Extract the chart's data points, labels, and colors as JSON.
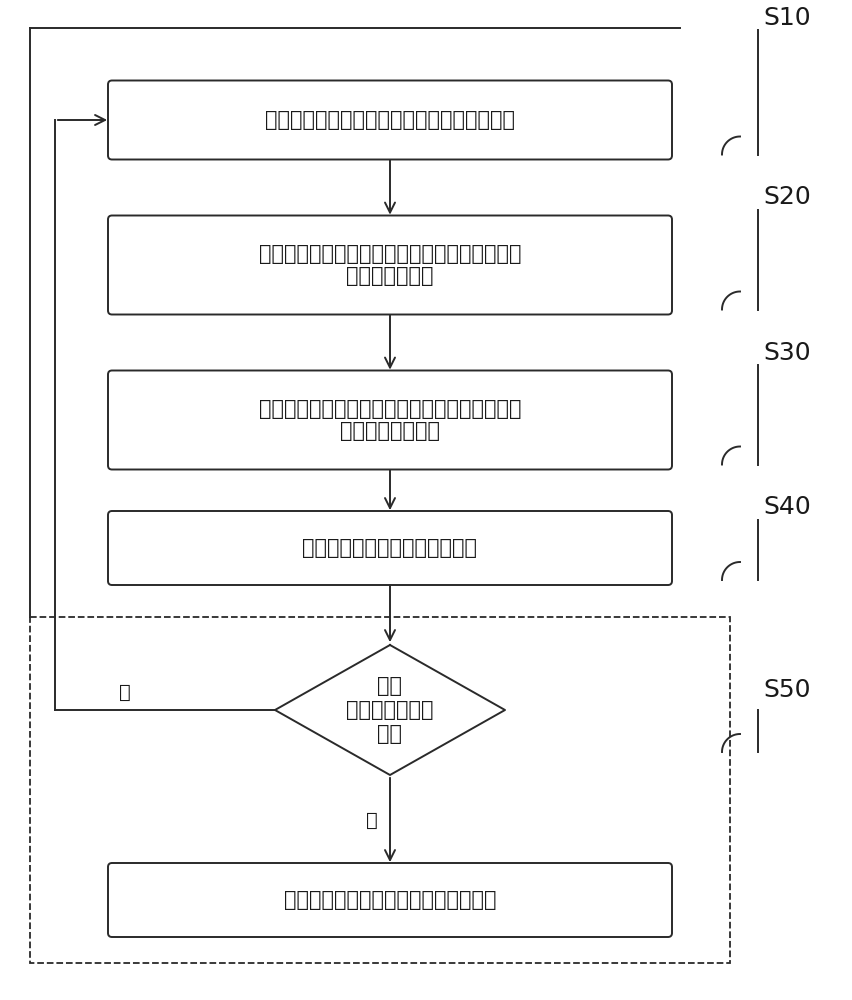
{
  "bg_color": "#ffffff",
  "box_edge_color": "#2a2a2a",
  "arrow_color": "#2a2a2a",
  "text_color": "#1a1a1a",
  "box1_text": "调取区外故障发生时测量回路的多源录波文件",
  "box2_line1": "对多源录波文件的录波波形进行异步多源数据的",
  "box2_line2": "关联及时间同步",
  "box3_line1": "根据预设的规则库判别录波波形数据，以确定测",
  "box3_line2": "量回路的异常类型",
  "box4_text": "根据所确定的异常类型进行报警",
  "diamond_line1": "是否",
  "diamond_line2": "出现新的异常类",
  "diamond_line3": "型？",
  "box5_text": "补充新的判定规则至规则库中进行完善",
  "yes_label": "是",
  "no_label": "否",
  "step_labels": [
    "S10",
    "S20",
    "S30",
    "S40",
    "S50"
  ],
  "font_size": 15,
  "step_font_size": 18,
  "lw": 1.4
}
